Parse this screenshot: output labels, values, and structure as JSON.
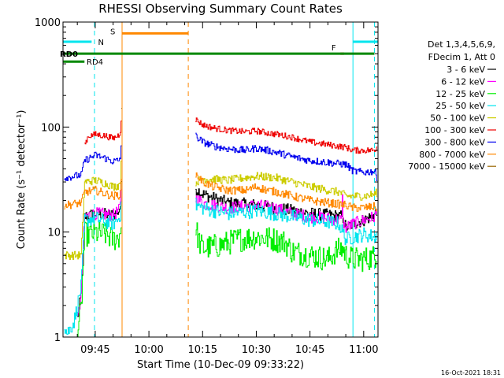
{
  "chart_data": {
    "type": "line",
    "title": "RHESSI Observing Summary Count Rates",
    "xlabel": "Start Time (10-Dec-09 09:33:22)",
    "ylabel": "Count Rate (s⁻¹ detector⁻¹)",
    "yscale": "log",
    "ylim": [
      1,
      1000
    ],
    "xlim_minutes": [
      36,
      124
    ],
    "y_ticks": [
      {
        "value": 1,
        "label": "1"
      },
      {
        "value": 10,
        "label": "10"
      },
      {
        "value": 100,
        "label": "100"
      },
      {
        "value": 1000,
        "label": "1000"
      }
    ],
    "x_ticks": [
      {
        "minute": 45,
        "label": "09:45"
      },
      {
        "minute": 60,
        "label": "10:00"
      },
      {
        "minute": 75,
        "label": "10:15"
      },
      {
        "minute": 90,
        "label": "10:30"
      },
      {
        "minute": 105,
        "label": "10:45"
      },
      {
        "minute": 120,
        "label": "11:00"
      }
    ],
    "legend_header": [
      "Det 1,3,4,5,6,9,",
      "FDecim 1, Att 0"
    ],
    "legend": [
      {
        "label": "3 - 6 keV",
        "color": "#000000"
      },
      {
        "label": "6 - 12 keV",
        "color": "#ff00ff"
      },
      {
        "label": "12 - 25 keV",
        "color": "#00ee00"
      },
      {
        "label": "25 - 50 keV",
        "color": "#00e5ee"
      },
      {
        "label": "50 - 100 keV",
        "color": "#cccc00"
      },
      {
        "label": "100 - 300 keV",
        "color": "#ee0000"
      },
      {
        "label": "300 - 800 keV",
        "color": "#0000ee"
      },
      {
        "label": "800 - 7000 keV",
        "color": "#ff8800"
      },
      {
        "label": "7000 - 15000 keV",
        "color": "#996600"
      }
    ],
    "flags": [
      {
        "label": "N",
        "color": "#00e5ee",
        "level": 650,
        "segments": [
          [
            36,
            44
          ],
          [
            117,
            124
          ]
        ]
      },
      {
        "label": "S",
        "color": "#ff8800",
        "level": 780,
        "segments": [
          [
            52.5,
            71
          ]
        ]
      },
      {
        "label": "F",
        "color": "#ee0000",
        "level": 500,
        "segments": [
          [
            113.5,
            114.5
          ]
        ]
      },
      {
        "label": "RD0",
        "color": "#008800",
        "level": 500,
        "segments": [
          [
            36,
            123
          ]
        ]
      },
      {
        "label": "RD4",
        "color": "#008800",
        "level": 420,
        "segments": [
          [
            36,
            42
          ]
        ]
      }
    ],
    "markers": [
      {
        "minute": 36,
        "style": "solid",
        "color": "#00e5ee"
      },
      {
        "minute": 44.8,
        "style": "dashed",
        "color": "#00e5ee"
      },
      {
        "minute": 52.5,
        "style": "solid",
        "color": "#ff8800"
      },
      {
        "minute": 71,
        "style": "dashed",
        "color": "#ff8800"
      },
      {
        "minute": 117,
        "style": "solid",
        "color": "#00e5ee"
      },
      {
        "minute": 123,
        "style": "dashed",
        "color": "#00e5ee"
      }
    ],
    "series": [
      {
        "name": "3 - 6 keV",
        "color": "#000000",
        "noise": 0.06,
        "points": [
          [
            40,
            1.5
          ],
          [
            41,
            2.5
          ],
          [
            42,
            14
          ],
          [
            45,
            15
          ],
          [
            50,
            14.5
          ],
          [
            51.5,
            16
          ],
          [
            52,
            18
          ],
          [
            52.4,
            40
          ],
          null,
          [
            73,
            26
          ],
          [
            75,
            23
          ],
          [
            78,
            21
          ],
          [
            82,
            19
          ],
          [
            90,
            18
          ],
          [
            95,
            17
          ],
          [
            100,
            16
          ],
          [
            105,
            15
          ],
          [
            110,
            14.5
          ],
          [
            114,
            14
          ],
          [
            115,
            11
          ],
          [
            117,
            12
          ],
          [
            120,
            13
          ],
          [
            123,
            14.5
          ],
          [
            123.8,
            17
          ]
        ]
      },
      {
        "name": "6 - 12 keV",
        "color": "#ff00ff",
        "noise": 0.06,
        "points": [
          [
            40,
            1.4
          ],
          [
            41,
            2.5
          ],
          [
            42,
            14
          ],
          [
            45,
            15
          ],
          [
            50,
            14.5
          ],
          [
            51.5,
            16
          ],
          [
            52,
            18
          ],
          [
            52.4,
            38
          ],
          null,
          [
            73,
            21
          ],
          [
            75,
            19
          ],
          [
            78,
            18
          ],
          [
            82,
            17
          ],
          [
            90,
            18
          ],
          [
            95,
            17
          ],
          [
            100,
            15
          ],
          [
            105,
            14
          ],
          [
            110,
            13.5
          ],
          [
            113.8,
            13
          ],
          [
            114,
            25
          ],
          [
            114.2,
            12.5
          ],
          [
            115,
            11
          ],
          [
            117,
            12
          ],
          [
            120,
            13
          ],
          [
            123,
            14
          ],
          [
            123.8,
            16
          ]
        ]
      },
      {
        "name": "12 - 25 keV",
        "color": "#00ee00",
        "noise": 0.12,
        "points": [
          [
            40,
            1.2
          ],
          [
            41,
            1.8
          ],
          [
            42,
            9.5
          ],
          [
            45,
            9.8
          ],
          [
            48,
            9.5
          ],
          [
            50,
            8.5
          ],
          [
            51.5,
            9
          ],
          [
            52,
            10
          ],
          [
            52.4,
            14
          ],
          null,
          [
            73,
            11
          ],
          [
            74,
            8
          ],
          [
            75,
            7
          ],
          [
            80,
            7.5
          ],
          [
            85,
            8.5
          ],
          [
            90,
            9
          ],
          [
            95,
            8.5
          ],
          [
            98,
            8
          ],
          [
            100,
            6.5
          ],
          [
            105,
            6
          ],
          [
            110,
            5.5
          ],
          [
            112,
            6.5
          ],
          [
            114,
            7
          ],
          [
            115,
            6
          ],
          [
            117,
            5.5
          ],
          [
            120,
            5.5
          ],
          [
            123,
            5.8
          ],
          [
            123.8,
            6.5
          ]
        ]
      },
      {
        "name": "25 - 50 keV",
        "color": "#00e5ee",
        "noise": 0.07,
        "points": [
          [
            36.3,
            1.3
          ],
          [
            37,
            1.1
          ],
          [
            38,
            1.2
          ],
          [
            39,
            1.4
          ],
          [
            40,
            2
          ],
          [
            41,
            3
          ],
          [
            42,
            13
          ],
          [
            45,
            13.5
          ],
          [
            48,
            12.5
          ],
          [
            50,
            12
          ],
          [
            51.5,
            13.5
          ],
          [
            52,
            15
          ],
          [
            52.4,
            30
          ],
          null,
          [
            73,
            18
          ],
          [
            75,
            17
          ],
          [
            78,
            16
          ],
          [
            82,
            15
          ],
          [
            90,
            16
          ],
          [
            95,
            15
          ],
          [
            100,
            14
          ],
          [
            105,
            13
          ],
          [
            110,
            12.5
          ],
          [
            113,
            12
          ],
          [
            115,
            8.5
          ],
          [
            117,
            9
          ],
          [
            120,
            9.5
          ],
          [
            123,
            9
          ],
          [
            123.8,
            10
          ]
        ]
      },
      {
        "name": "50 - 100 keV",
        "color": "#cccc00",
        "noise": 0.04,
        "points": [
          [
            36.3,
            6
          ],
          [
            39,
            6
          ],
          [
            41,
            6
          ],
          [
            42,
            30
          ],
          [
            45,
            31
          ],
          [
            48,
            29
          ],
          [
            50,
            27
          ],
          [
            51.5,
            28
          ],
          [
            52,
            32
          ],
          [
            52.4,
            60
          ],
          null,
          [
            73,
            30
          ],
          [
            75,
            32
          ],
          [
            78,
            32
          ],
          [
            82,
            31
          ],
          [
            87,
            33
          ],
          [
            90,
            34
          ],
          [
            95,
            33
          ],
          [
            100,
            30
          ],
          [
            105,
            27
          ],
          [
            110,
            25
          ],
          [
            113,
            24
          ],
          [
            115,
            22
          ],
          [
            117,
            22
          ],
          [
            120,
            22
          ],
          [
            123,
            23
          ],
          [
            123.8,
            24
          ]
        ]
      },
      {
        "name": "100 - 300 keV",
        "color": "#ee0000",
        "noise": 0.03,
        "points": [
          [
            42,
            68
          ],
          [
            43,
            82
          ],
          [
            45,
            85
          ],
          [
            48,
            82
          ],
          [
            50,
            78
          ],
          [
            51.5,
            84
          ],
          [
            52,
            92
          ],
          [
            52.4,
            160
          ],
          null,
          [
            73,
            118
          ],
          [
            75,
            105
          ],
          [
            78,
            98
          ],
          [
            82,
            93
          ],
          [
            87,
            90
          ],
          [
            90,
            92
          ],
          [
            93,
            88
          ],
          [
            96,
            85
          ],
          [
            100,
            80
          ],
          [
            105,
            72
          ],
          [
            110,
            68
          ],
          [
            115,
            64
          ],
          [
            117,
            60
          ],
          [
            120,
            60
          ],
          [
            123,
            60
          ],
          [
            123.8,
            66
          ]
        ]
      },
      {
        "name": "300 - 800 keV",
        "color": "#0000ee",
        "noise": 0.035,
        "points": [
          [
            36.3,
            33
          ],
          [
            39,
            34
          ],
          [
            41,
            35
          ],
          [
            42,
            48
          ],
          [
            45,
            54
          ],
          [
            48,
            50
          ],
          [
            50,
            47
          ],
          [
            51.5,
            48
          ],
          [
            52,
            52
          ],
          [
            52.4,
            85
          ],
          null,
          [
            73,
            82
          ],
          [
            75,
            72
          ],
          [
            78,
            66
          ],
          [
            82,
            62
          ],
          [
            87,
            60
          ],
          [
            90,
            63
          ],
          [
            93,
            60
          ],
          [
            96,
            57
          ],
          [
            100,
            52
          ],
          [
            105,
            48
          ],
          [
            110,
            46
          ],
          [
            115,
            44
          ],
          [
            117,
            38
          ],
          [
            120,
            37
          ],
          [
            123,
            38
          ],
          [
            123.8,
            32
          ]
        ]
      },
      {
        "name": "800 - 7000 keV",
        "color": "#ff8800",
        "noise": 0.04,
        "points": [
          [
            36.3,
            18
          ],
          [
            39,
            18.5
          ],
          [
            41,
            19
          ],
          [
            42,
            24
          ],
          [
            45,
            25
          ],
          [
            48,
            23
          ],
          [
            50,
            22
          ],
          [
            51.5,
            22.5
          ],
          [
            52,
            24
          ],
          [
            52.4,
            35
          ],
          null,
          [
            73,
            36
          ],
          [
            75,
            30
          ],
          [
            78,
            27
          ],
          [
            82,
            25
          ],
          [
            87,
            25
          ],
          [
            90,
            27
          ],
          [
            93,
            25
          ],
          [
            96,
            24
          ],
          [
            100,
            22
          ],
          [
            105,
            20
          ],
          [
            110,
            19
          ],
          [
            115,
            18
          ],
          [
            117,
            17
          ],
          [
            120,
            17
          ],
          [
            123,
            17.5
          ],
          [
            123.8,
            16.5
          ]
        ]
      },
      {
        "name": "7000 - 15000 keV",
        "color": "#996600",
        "noise": 0.05,
        "points": [
          [
            52.3,
            150
          ],
          [
            52.5,
            150
          ]
        ]
      }
    ]
  },
  "footer": {
    "timestamp": "16-Oct-2021 18:31"
  }
}
